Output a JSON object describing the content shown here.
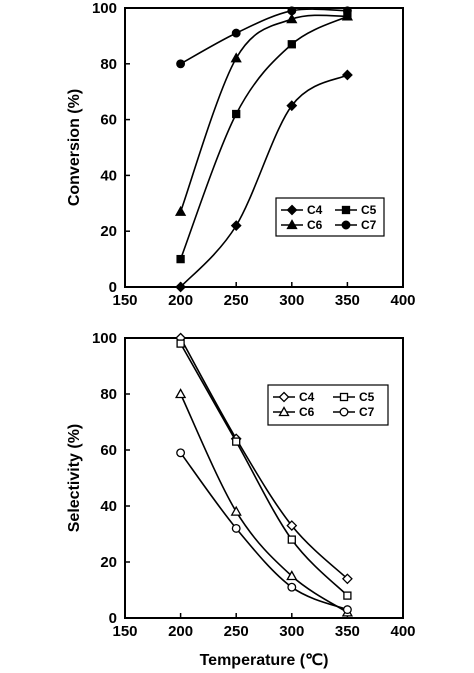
{
  "chart_data": [
    {
      "type": "line",
      "ylabel": "Conversion (%)",
      "xlabel": "",
      "xlim": [
        150,
        400
      ],
      "ylim": [
        0,
        100
      ],
      "xticks": [
        150,
        200,
        250,
        300,
        350,
        400
      ],
      "yticks": [
        0,
        20,
        40,
        60,
        80,
        100
      ],
      "grid": false,
      "legend_position": "right-middle",
      "series": [
        {
          "name": "C4",
          "marker": "diamond",
          "filled": true,
          "x": [
            200,
            250,
            300,
            350
          ],
          "y": [
            0,
            22,
            65,
            76
          ]
        },
        {
          "name": "C5",
          "marker": "square",
          "filled": true,
          "x": [
            200,
            250,
            300,
            350
          ],
          "y": [
            10,
            62,
            87,
            97
          ]
        },
        {
          "name": "C6",
          "marker": "triangle",
          "filled": true,
          "x": [
            200,
            250,
            300,
            350
          ],
          "y": [
            27,
            82,
            96,
            97
          ]
        },
        {
          "name": "C7",
          "marker": "circle",
          "filled": true,
          "x": [
            200,
            250,
            300,
            350
          ],
          "y": [
            80,
            91,
            99,
            99
          ]
        }
      ]
    },
    {
      "type": "line",
      "ylabel": "Selectivity (%)",
      "xlabel": "Temperature (℃)",
      "xlim": [
        150,
        400
      ],
      "ylim": [
        0,
        100
      ],
      "xticks": [
        150,
        200,
        250,
        300,
        350,
        400
      ],
      "yticks": [
        0,
        20,
        40,
        60,
        80,
        100
      ],
      "grid": false,
      "legend_position": "top-right",
      "series": [
        {
          "name": "C4",
          "marker": "diamond",
          "filled": false,
          "x": [
            200,
            250,
            300,
            350
          ],
          "y": [
            100,
            64,
            33,
            14
          ]
        },
        {
          "name": "C5",
          "marker": "square",
          "filled": false,
          "x": [
            200,
            250,
            300,
            350
          ],
          "y": [
            98,
            63,
            28,
            8
          ]
        },
        {
          "name": "C6",
          "marker": "triangle",
          "filled": false,
          "x": [
            200,
            250,
            300,
            350
          ],
          "y": [
            80,
            38,
            15,
            2
          ]
        },
        {
          "name": "C7",
          "marker": "circle",
          "filled": false,
          "x": [
            200,
            250,
            300,
            350
          ],
          "y": [
            59,
            32,
            11,
            3
          ]
        }
      ]
    }
  ]
}
